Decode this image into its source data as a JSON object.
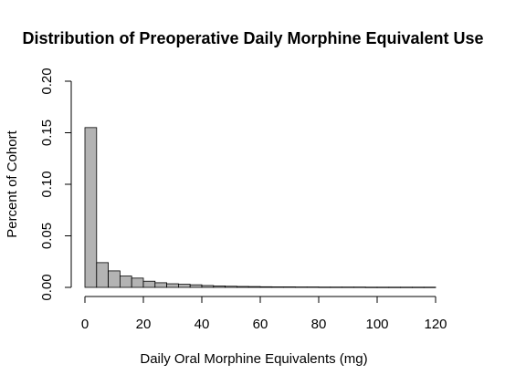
{
  "chart_data": {
    "type": "bar",
    "title": "Distribution of Preoperative Daily Morphine Equivalent Use",
    "xlabel": "Daily Oral Morphine Equivalents (mg)",
    "ylabel": "Percent of Cohort",
    "xlim": [
      0,
      120
    ],
    "ylim": [
      0,
      0.2
    ],
    "x_ticks": [
      0,
      20,
      40,
      60,
      80,
      100,
      120
    ],
    "x_tick_labels": [
      "0",
      "20",
      "40",
      "60",
      "80",
      "100",
      "120"
    ],
    "y_ticks": [
      0,
      0.05,
      0.1,
      0.15,
      0.2
    ],
    "y_tick_labels": [
      "0.00",
      "0.05",
      "0.10",
      "0.15",
      "0.20"
    ],
    "grid": false,
    "legend": "none",
    "bin_width": 4,
    "bin_edges": [
      0,
      4,
      8,
      12,
      16,
      20,
      24,
      28,
      32,
      36,
      40,
      44,
      48,
      52,
      56,
      60,
      64,
      68,
      72,
      76,
      80,
      84,
      88,
      92,
      96,
      100,
      104,
      108,
      112,
      116,
      120
    ],
    "values": [
      0.155,
      0.024,
      0.016,
      0.011,
      0.009,
      0.006,
      0.0045,
      0.0035,
      0.003,
      0.0025,
      0.0018,
      0.0014,
      0.0011,
      0.0009,
      0.0008,
      0.0006,
      0.0005,
      0.0005,
      0.0004,
      0.0004,
      0.0003,
      0.0003,
      0.0003,
      0.0003,
      0.0002,
      0.0002,
      0.0002,
      0.0002,
      0.0002,
      0.0002
    ],
    "bar_color": "#b3b3b3",
    "bar_edge_color": "#000000"
  }
}
